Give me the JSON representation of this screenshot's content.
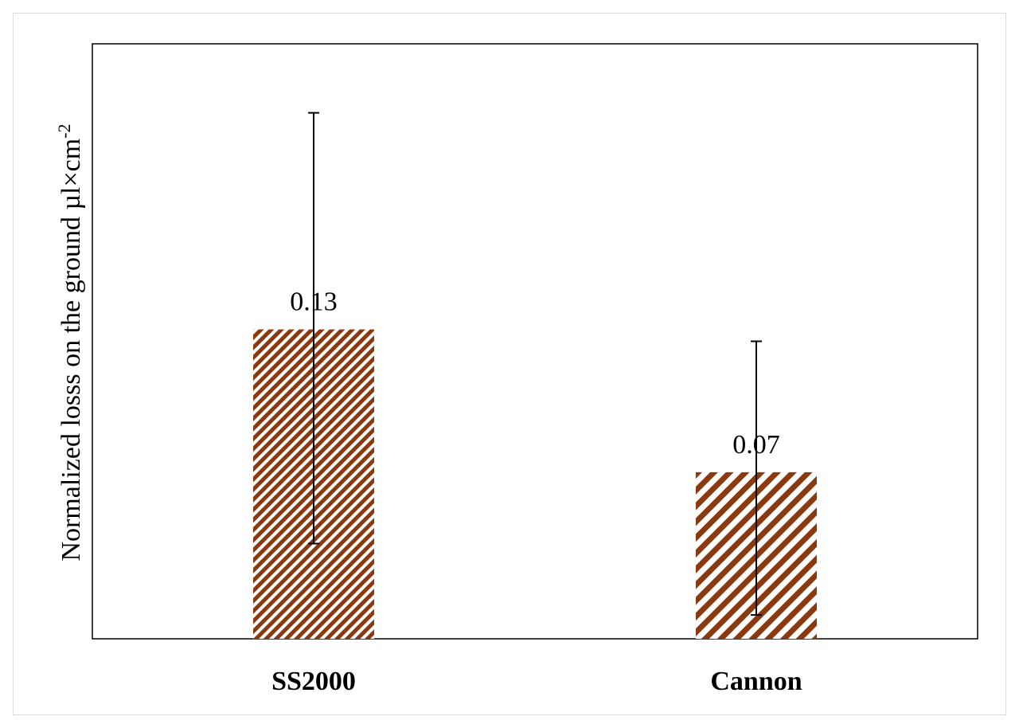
{
  "chart_data": {
    "type": "bar",
    "categories": [
      "SS2000",
      "Cannon"
    ],
    "values": [
      0.13,
      0.07
    ],
    "value_labels": [
      "0.13",
      "0.07"
    ],
    "error_bars": [
      {
        "low": 0.04,
        "high": 0.221
      },
      {
        "low": 0.01,
        "high": 0.125
      }
    ],
    "ylabel": "Normalized losss on the ground µl×cm",
    "ylabel_superscript": "-2",
    "ylim": [
      0,
      0.25
    ],
    "grid": false,
    "legend": "none",
    "colors": {
      "bar_stripe": "#8b3a0f",
      "axis": "#000000"
    },
    "patterns": [
      "fine-diagonal-stripes",
      "wide-diagonal-stripes"
    ]
  }
}
